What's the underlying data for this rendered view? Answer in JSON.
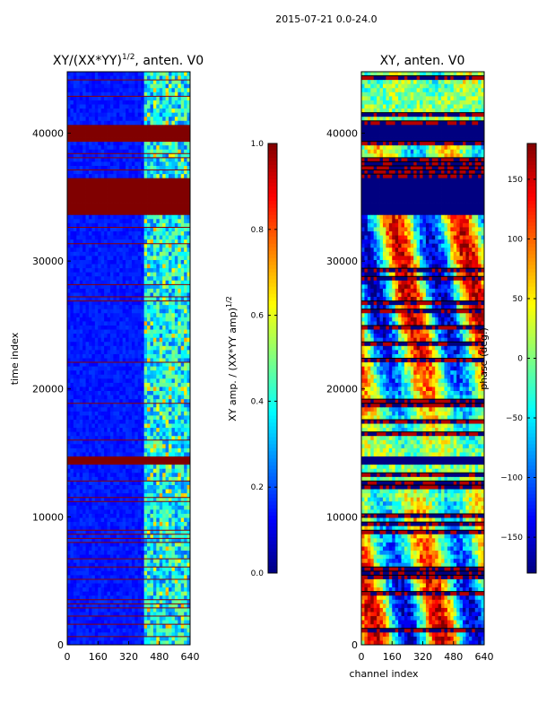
{
  "figure": {
    "suptitle": "2015-07-21 0.0-24.0"
  },
  "chart_data": [
    {
      "type": "heatmap",
      "title_main": "XY/(XX*YY)",
      "title_exp": "1/2",
      "title_rest": ", anten. V0",
      "xlabel": "",
      "ylabel": "time index",
      "xlim": [
        0,
        640
      ],
      "ylim": [
        0,
        44800
      ],
      "xticks": [
        0,
        160,
        320,
        480,
        640
      ],
      "yticks": [
        0,
        10000,
        20000,
        30000,
        40000
      ],
      "colormap": "jet",
      "colorbar": {
        "label_main": "XY amp. / (XX*YY amp)",
        "label_exp": "1/2",
        "vmin": 0.0,
        "vmax": 1.0,
        "ticks": [
          0.0,
          0.2,
          0.4,
          0.6,
          0.8,
          1.0
        ],
        "tick_labels": [
          "0.0",
          "0.2",
          "0.4",
          "0.6",
          "0.8",
          "1.0"
        ]
      },
      "saturated_time_bands": [
        [
          33500,
          36500
        ],
        [
          39400,
          40600
        ],
        [
          14000,
          14600
        ]
      ],
      "high_value_channel_range": [
        400,
        640
      ],
      "background_value": 0.12
    },
    {
      "type": "heatmap",
      "title_main": "XY, anten. V0",
      "xlabel": "channel index",
      "ylabel": "",
      "xlim": [
        0,
        640
      ],
      "ylim": [
        0,
        44800
      ],
      "xticks": [
        0,
        160,
        320,
        480,
        640
      ],
      "yticks": [
        0,
        10000,
        20000,
        30000,
        40000
      ],
      "colormap": "jet",
      "colorbar": {
        "label_main": "phase (deg.)",
        "vmin": -180,
        "vmax": 180,
        "ticks": [
          -150,
          -100,
          -50,
          0,
          50,
          100,
          150
        ],
        "tick_labels": [
          "−150",
          "−100",
          "−50",
          "0",
          "50",
          "100",
          "150"
        ]
      },
      "saturated_time_bands": [
        [
          33500,
          36500
        ],
        [
          39400,
          40600
        ],
        [
          14000,
          14600
        ]
      ],
      "saturated_value": -180
    }
  ]
}
